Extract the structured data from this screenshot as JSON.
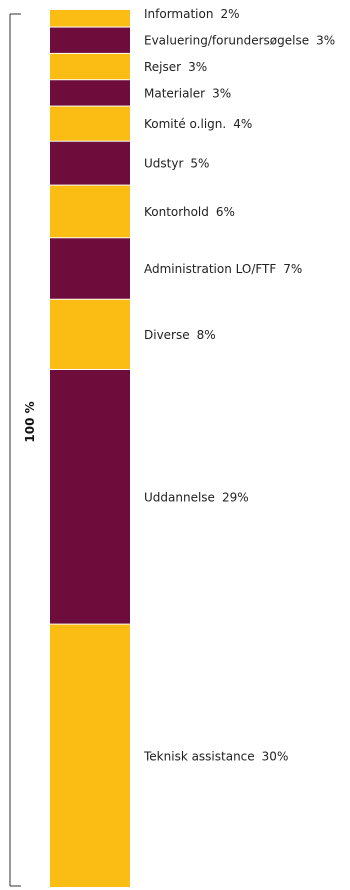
{
  "chart_data": {
    "type": "bar",
    "stacked": true,
    "orientation": "vertical-100-percent",
    "total_label": "100 %",
    "colors": {
      "odd": "#fbbd14",
      "even": "#6e0d3c",
      "bracket": "#333333"
    },
    "segments": [
      {
        "label": "Information",
        "value": 2,
        "display": "2%"
      },
      {
        "label": "Evaluering/forundersøgelse",
        "value": 3,
        "display": "3%"
      },
      {
        "label": "Rejser",
        "value": 3,
        "display": "3%"
      },
      {
        "label": "Materialer",
        "value": 3,
        "display": "3%"
      },
      {
        "label": "Komité o.lign.",
        "value": 4,
        "display": "4%"
      },
      {
        "label": "Udstyr",
        "value": 5,
        "display": "5%"
      },
      {
        "label": "Kontorhold",
        "value": 6,
        "display": "6%"
      },
      {
        "label": "Administration LO/FTF",
        "value": 7,
        "display": "7%"
      },
      {
        "label": "Diverse",
        "value": 8,
        "display": "8%"
      },
      {
        "label": "Uddannelse",
        "value": 29,
        "display": "29%"
      },
      {
        "label": "Teknisk assistance",
        "value": 30,
        "display": "30%"
      }
    ]
  }
}
